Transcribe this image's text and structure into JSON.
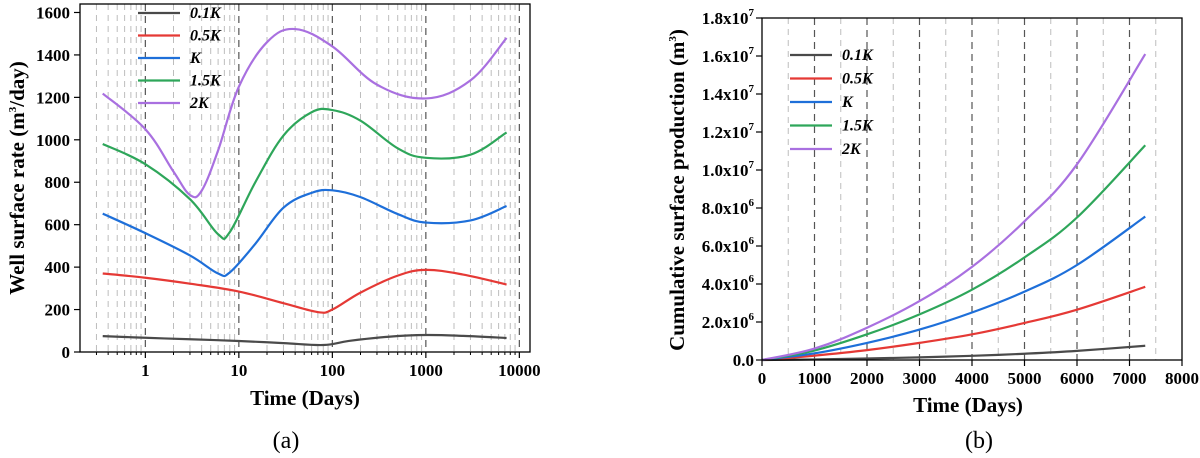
{
  "panel_a": {
    "caption": "(a)",
    "chart_data": {
      "type": "line",
      "xscale": "log",
      "xlabel": "Time (Days)",
      "ylabel": "Well surface rate (m3/day)",
      "ylabel_parts": {
        "pre": "Well surface rate (m",
        "sup": "3",
        "post": "/day)"
      },
      "xlim": [
        0.2,
        13000
      ],
      "ylim": [
        0,
        1640
      ],
      "xticks": [
        1,
        10,
        100,
        1000,
        10000
      ],
      "xtick_labels": [
        "1",
        "10",
        "100",
        "1000",
        "10000"
      ],
      "yticks": [
        0,
        200,
        400,
        600,
        800,
        1000,
        1200,
        1400,
        1600
      ],
      "ytick_labels": [
        "0",
        "200",
        "400",
        "600",
        "800",
        "1000",
        "1200",
        "1400",
        "1600"
      ],
      "legend_position": "top-left",
      "series": [
        {
          "name": "0.1K",
          "color": "#4a4a4a",
          "points": [
            [
              0.35,
              75
            ],
            [
              1,
              67
            ],
            [
              3,
              60
            ],
            [
              10,
              52
            ],
            [
              30,
              42
            ],
            [
              80,
              33
            ],
            [
              150,
              52
            ],
            [
              400,
              72
            ],
            [
              1000,
              80
            ],
            [
              2500,
              76
            ],
            [
              7300,
              66
            ]
          ]
        },
        {
          "name": "0.5K",
          "color": "#e53935",
          "points": [
            [
              0.35,
              370
            ],
            [
              1,
              350
            ],
            [
              3,
              322
            ],
            [
              10,
              285
            ],
            [
              30,
              230
            ],
            [
              70,
              188
            ],
            [
              100,
              200
            ],
            [
              200,
              280
            ],
            [
              500,
              360
            ],
            [
              1000,
              387
            ],
            [
              2500,
              365
            ],
            [
              7300,
              318
            ]
          ]
        },
        {
          "name": "K",
          "color": "#1e6fd9",
          "points": [
            [
              0.35,
              652
            ],
            [
              1,
              560
            ],
            [
              3,
              455
            ],
            [
              6,
              370
            ],
            [
              8,
              375
            ],
            [
              15,
              510
            ],
            [
              30,
              680
            ],
            [
              60,
              750
            ],
            [
              100,
              762
            ],
            [
              200,
              730
            ],
            [
              500,
              650
            ],
            [
              1000,
              610
            ],
            [
              3000,
              620
            ],
            [
              7300,
              688
            ]
          ]
        },
        {
          "name": "1.5K",
          "color": "#2ea65a",
          "points": [
            [
              0.35,
              980
            ],
            [
              1,
              885
            ],
            [
              3,
              720
            ],
            [
              6,
              555
            ],
            [
              8,
              565
            ],
            [
              15,
              800
            ],
            [
              30,
              1020
            ],
            [
              60,
              1130
            ],
            [
              100,
              1140
            ],
            [
              200,
              1090
            ],
            [
              500,
              960
            ],
            [
              1000,
              915
            ],
            [
              3000,
              930
            ],
            [
              7300,
              1035
            ]
          ]
        },
        {
          "name": "2K",
          "color": "#a970e0",
          "points": [
            [
              0.35,
              1218
            ],
            [
              1,
              1050
            ],
            [
              2,
              850
            ],
            [
              3,
              740
            ],
            [
              4,
              760
            ],
            [
              6,
              950
            ],
            [
              10,
              1250
            ],
            [
              20,
              1460
            ],
            [
              40,
              1522
            ],
            [
              100,
              1440
            ],
            [
              300,
              1260
            ],
            [
              1000,
              1195
            ],
            [
              3000,
              1280
            ],
            [
              7300,
              1480
            ]
          ]
        }
      ]
    }
  },
  "panel_b": {
    "caption": "(b)",
    "chart_data": {
      "type": "line",
      "xscale": "linear",
      "xlabel": "Time (Days)",
      "ylabel": "Cumulative surface production (m3)",
      "ylabel_parts": {
        "pre": "Cumulative surface production (m",
        "sup": "3",
        "post": ")"
      },
      "xlim": [
        0,
        8000
      ],
      "ylim": [
        0,
        18000000
      ],
      "xticks": [
        0,
        1000,
        2000,
        3000,
        4000,
        5000,
        6000,
        7000,
        8000
      ],
      "xtick_labels": [
        "0",
        "1000",
        "2000",
        "3000",
        "4000",
        "5000",
        "6000",
        "7000",
        "8000"
      ],
      "yticks": [
        0,
        2000000,
        4000000,
        6000000,
        8000000,
        10000000,
        12000000,
        14000000,
        16000000,
        18000000
      ],
      "ytick_labels": [
        {
          "base": "0.0",
          "exp": ""
        },
        {
          "base": "2.0x10",
          "exp": "6"
        },
        {
          "base": "4.0x10",
          "exp": "6"
        },
        {
          "base": "6.0x10",
          "exp": "6"
        },
        {
          "base": "8.0x10",
          "exp": "6"
        },
        {
          "base": "1.0x10",
          "exp": "7"
        },
        {
          "base": "1.2x10",
          "exp": "7"
        },
        {
          "base": "1.4x10",
          "exp": "7"
        },
        {
          "base": "1.6x10",
          "exp": "7"
        },
        {
          "base": "1.8x10",
          "exp": "7"
        }
      ],
      "legend_position": "top-left",
      "series": [
        {
          "name": "0.1K",
          "color": "#4a4a4a",
          "points": [
            [
              0,
              0
            ],
            [
              1000,
              30000
            ],
            [
              2000,
              80000
            ],
            [
              3000,
              140000
            ],
            [
              4000,
              220000
            ],
            [
              5000,
              330000
            ],
            [
              6000,
              480000
            ],
            [
              7300,
              750000
            ]
          ]
        },
        {
          "name": "0.5K",
          "color": "#e53935",
          "points": [
            [
              0,
              0
            ],
            [
              1000,
              230000
            ],
            [
              2000,
              520000
            ],
            [
              3000,
              900000
            ],
            [
              4000,
              1350000
            ],
            [
              5000,
              1950000
            ],
            [
              6000,
              2650000
            ],
            [
              7300,
              3850000
            ]
          ]
        },
        {
          "name": "K",
          "color": "#1e6fd9",
          "points": [
            [
              0,
              0
            ],
            [
              1000,
              350000
            ],
            [
              2000,
              900000
            ],
            [
              3000,
              1600000
            ],
            [
              4000,
              2500000
            ],
            [
              5000,
              3600000
            ],
            [
              6000,
              5000000
            ],
            [
              7300,
              7550000
            ]
          ]
        },
        {
          "name": "1.5K",
          "color": "#2ea65a",
          "points": [
            [
              0,
              0
            ],
            [
              1000,
              500000
            ],
            [
              2000,
              1350000
            ],
            [
              3000,
              2400000
            ],
            [
              4000,
              3700000
            ],
            [
              5000,
              5400000
            ],
            [
              6000,
              7500000
            ],
            [
              7300,
              11300000
            ]
          ]
        },
        {
          "name": "2K",
          "color": "#a970e0",
          "points": [
            [
              0,
              0
            ],
            [
              1000,
              600000
            ],
            [
              2000,
              1700000
            ],
            [
              3000,
              3100000
            ],
            [
              4000,
              4900000
            ],
            [
              5000,
              7300000
            ],
            [
              6000,
              10300000
            ],
            [
              7300,
              16100000
            ]
          ]
        }
      ]
    }
  }
}
